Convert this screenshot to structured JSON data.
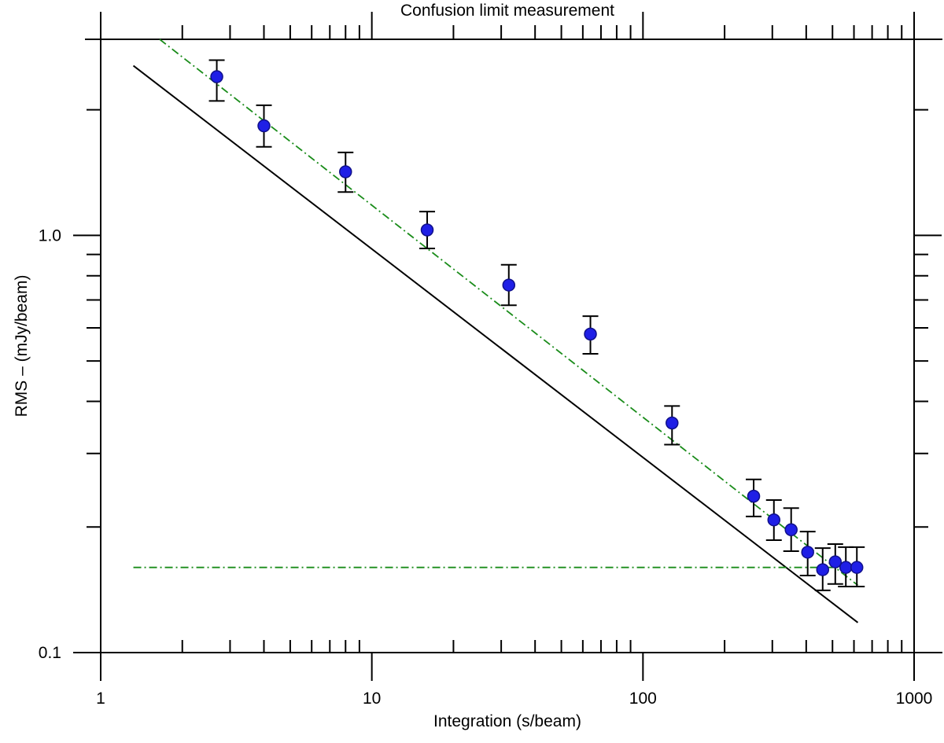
{
  "chart_data": {
    "type": "scatter",
    "title": "Confusion limit measurement",
    "xlabel": "Integration (s/beam)",
    "ylabel": "RMS – (mJy/beam)",
    "xscale": "log",
    "yscale": "log",
    "xlim": [
      1,
      1000
    ],
    "ylim": [
      0.1,
      2.95
    ],
    "grid": false,
    "x_tick_labels": [
      "1",
      "10",
      "100",
      "1000"
    ],
    "y_tick_labels": [
      "0.1",
      "1.0"
    ],
    "x_major_ticks": [
      1,
      10,
      100,
      1000
    ],
    "y_major_ticks": [
      0.1,
      1.0
    ],
    "colors": {
      "points": "#1f1fe6",
      "model_line": "#000000",
      "fit_line": "#1a8c1a",
      "confusion_floor": "#1a8c1a"
    },
    "series": [
      {
        "kind": "points_with_errorbars",
        "x": [
          2.68,
          4.0,
          8.0,
          16.0,
          32.0,
          64.0,
          128.0,
          256.0,
          304.0,
          352.0,
          405.0,
          460.0,
          512.0,
          560.0,
          615.0
        ],
        "y": [
          2.4,
          1.83,
          1.42,
          1.03,
          0.76,
          0.58,
          0.355,
          0.237,
          0.208,
          0.197,
          0.174,
          0.158,
          0.165,
          0.16,
          0.16
        ],
        "yerr_low": [
          2.1,
          1.63,
          1.27,
          0.93,
          0.68,
          0.52,
          0.315,
          0.212,
          0.186,
          0.175,
          0.153,
          0.141,
          0.146,
          0.144,
          0.144
        ],
        "yerr_high": [
          2.63,
          2.05,
          1.58,
          1.14,
          0.85,
          0.64,
          0.39,
          0.26,
          0.232,
          0.222,
          0.195,
          0.178,
          0.182,
          0.179,
          0.179
        ]
      },
      {
        "kind": "line",
        "style": "solid",
        "x": [
          1.32,
          620
        ],
        "y": [
          2.55,
          0.118
        ]
      },
      {
        "kind": "line",
        "style": "dash-dot",
        "x": [
          1.65,
          620
        ],
        "y": [
          2.95,
          0.145
        ]
      },
      {
        "kind": "line",
        "style": "dash-dot",
        "x": [
          1.32,
          620
        ],
        "y": [
          0.16,
          0.16
        ]
      }
    ]
  }
}
